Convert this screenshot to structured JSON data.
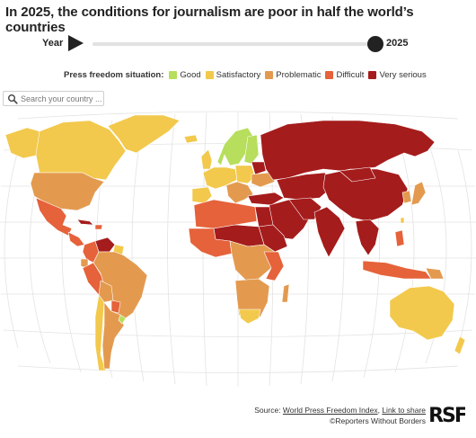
{
  "title": "In 2025, the conditions for journalism are poor in half the world’s countries",
  "timeline": {
    "label": "Year",
    "value": "2025",
    "position_fraction": 1.0
  },
  "legend": {
    "title": "Press freedom situation:",
    "items": [
      {
        "label": "Good",
        "color": "#b7de5c"
      },
      {
        "label": "Satisfactory",
        "color": "#f2c94c"
      },
      {
        "label": "Problematic",
        "color": "#e39a4f"
      },
      {
        "label": "Difficult",
        "color": "#e5623a"
      },
      {
        "label": "Very serious",
        "color": "#a51c1c"
      }
    ]
  },
  "search": {
    "placeholder": "Search your country ..."
  },
  "map": {
    "graticule": true,
    "ocean_color": "#ffffff",
    "land_border_color": "#ffffff"
  },
  "footer": {
    "source_prefix": "Source: ",
    "source_link": "World Press Freedom Index",
    "separator": ", ",
    "share_link": "Link to share",
    "copyright": "©Reporters Without Borders"
  },
  "logo": {
    "text": "RSF",
    "icon": "rsf-logo"
  }
}
